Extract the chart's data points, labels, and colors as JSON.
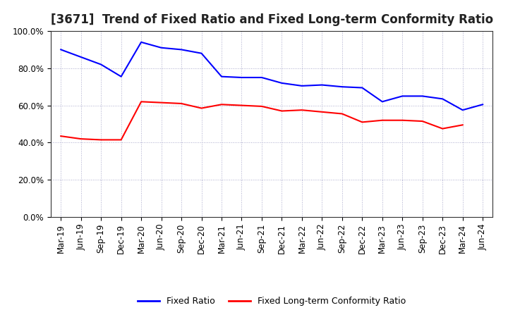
{
  "title": "[3671]  Trend of Fixed Ratio and Fixed Long-term Conformity Ratio",
  "x_labels": [
    "Mar-19",
    "Jun-19",
    "Sep-19",
    "Dec-19",
    "Mar-20",
    "Jun-20",
    "Sep-20",
    "Dec-20",
    "Mar-21",
    "Jun-21",
    "Sep-21",
    "Dec-21",
    "Mar-22",
    "Jun-22",
    "Sep-22",
    "Dec-22",
    "Mar-23",
    "Jun-23",
    "Sep-23",
    "Dec-23",
    "Mar-24",
    "Jun-24"
  ],
  "fixed_ratio": [
    90.0,
    86.0,
    82.0,
    75.5,
    94.0,
    91.0,
    90.0,
    88.0,
    75.5,
    75.0,
    75.0,
    72.0,
    70.5,
    71.0,
    70.0,
    69.5,
    62.0,
    65.0,
    65.0,
    63.5,
    57.5,
    60.5
  ],
  "fixed_lt_ratio": [
    43.5,
    42.0,
    41.5,
    41.5,
    62.0,
    61.5,
    61.0,
    58.5,
    60.5,
    60.0,
    59.5,
    57.0,
    57.5,
    56.5,
    55.5,
    51.0,
    52.0,
    52.0,
    51.5,
    47.5,
    49.5,
    null
  ],
  "fixed_ratio_color": "#0000FF",
  "fixed_lt_ratio_color": "#FF0000",
  "ylim": [
    0,
    100
  ],
  "yticks": [
    0,
    20,
    40,
    60,
    80,
    100
  ],
  "ytick_labels": [
    "0.0%",
    "20.0%",
    "40.0%",
    "60.0%",
    "80.0%",
    "100.0%"
  ],
  "background_color": "#ffffff",
  "plot_bg_color": "#ffffff",
  "grid_color": "#aaaacc",
  "title_fontsize": 12,
  "tick_fontsize": 8.5,
  "legend_labels": [
    "Fixed Ratio",
    "Fixed Long-term Conformity Ratio"
  ]
}
